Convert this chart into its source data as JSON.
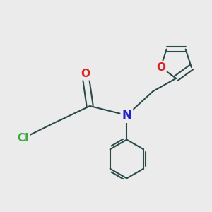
{
  "background_color": "#ebebeb",
  "bond_color": "#2a4a4a",
  "bond_width": 1.5,
  "atom_colors": {
    "Cl": "#3aaa3a",
    "O": "#dd2222",
    "N": "#2222cc",
    "C": "#2a4a4a"
  },
  "font_size": 11,
  "figsize": [
    3.0,
    3.0
  ],
  "dpi": 100,
  "xlim": [
    -2.6,
    2.0
  ],
  "ylim": [
    -2.2,
    2.4
  ]
}
